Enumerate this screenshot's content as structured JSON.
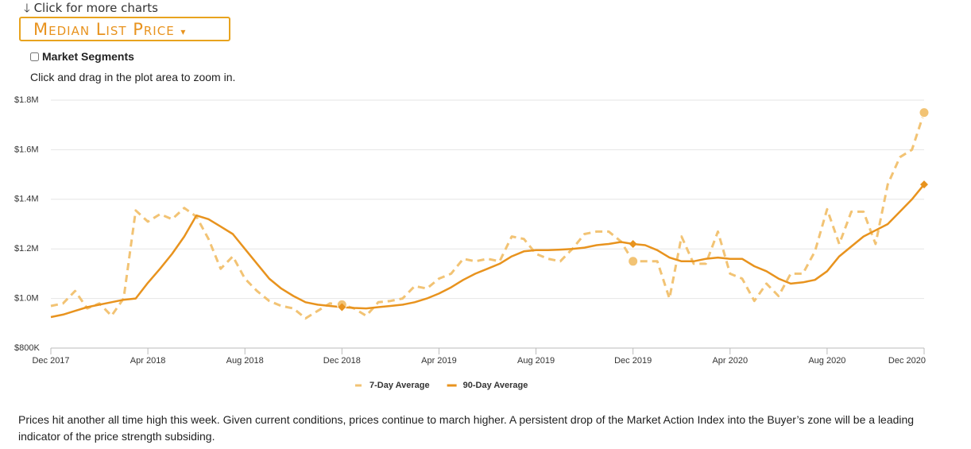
{
  "ui": {
    "more_link": "Click for more charts",
    "dropdown": "Median List Price",
    "checkbox": "Market Segments",
    "hint": "Click and drag in the plot area to zoom in.",
    "note": "Prices hit another all time high this week. Given current conditions, prices continue to march higher. A persistent drop of the Market Action Index into the Buyer’s zone will be a leading indicator of the price strength subsiding."
  },
  "chart_data": {
    "type": "line",
    "categories": [
      "Dec 2017",
      null,
      null,
      null,
      null,
      null,
      null,
      null,
      "Apr 2018",
      null,
      null,
      null,
      null,
      null,
      null,
      null,
      "Aug 2018",
      null,
      null,
      null,
      null,
      null,
      null,
      null,
      "Dec 2018",
      null,
      null,
      null,
      null,
      null,
      null,
      null,
      "Apr 2019",
      null,
      null,
      null,
      null,
      null,
      null,
      null,
      "Aug 2019",
      null,
      null,
      null,
      null,
      null,
      null,
      null,
      "Dec 2019",
      null,
      null,
      null,
      null,
      null,
      null,
      null,
      "Apr 2020",
      null,
      null,
      null,
      null,
      null,
      null,
      null,
      "Aug 2020",
      null,
      null,
      null,
      null,
      null,
      null,
      null,
      "Dec 2020"
    ],
    "series": [
      {
        "name": "7-Day Average",
        "color": "#f2c374",
        "dashed": true,
        "values": [
          970000,
          980000,
          1030000,
          960000,
          980000,
          930000,
          1000000,
          1355000,
          1310000,
          1340000,
          1320000,
          1365000,
          1330000,
          1240000,
          1120000,
          1170000,
          1080000,
          1030000,
          990000,
          970000,
          960000,
          920000,
          950000,
          980000,
          975000,
          960000,
          930000,
          985000,
          990000,
          1000000,
          1050000,
          1040000,
          1080000,
          1100000,
          1160000,
          1150000,
          1160000,
          1150000,
          1250000,
          1240000,
          1180000,
          1160000,
          1150000,
          1200000,
          1260000,
          1270000,
          1270000,
          1230000,
          1150000,
          1150000,
          1150000,
          1000000,
          1250000,
          1140000,
          1140000,
          1270000,
          1100000,
          1080000,
          990000,
          1060000,
          1010000,
          1100000,
          1100000,
          1190000,
          1360000,
          1220000,
          1350000,
          1350000,
          1220000,
          1460000,
          1570000,
          1600000,
          1750000
        ]
      },
      {
        "name": "90-Day Average",
        "color": "#e8931e",
        "dashed": false,
        "values": [
          925000,
          935000,
          950000,
          965000,
          975000,
          985000,
          995000,
          1000000,
          1063000,
          1120000,
          1180000,
          1250000,
          1335000,
          1320000,
          1290000,
          1260000,
          1200000,
          1140000,
          1080000,
          1040000,
          1010000,
          985000,
          975000,
          970000,
          965000,
          962000,
          960000,
          965000,
          970000,
          975000,
          985000,
          1000000,
          1020000,
          1045000,
          1075000,
          1100000,
          1120000,
          1140000,
          1170000,
          1190000,
          1195000,
          1195000,
          1197000,
          1200000,
          1205000,
          1215000,
          1220000,
          1228000,
          1220000,
          1215000,
          1195000,
          1165000,
          1150000,
          1150000,
          1160000,
          1165000,
          1160000,
          1160000,
          1130000,
          1110000,
          1080000,
          1060000,
          1065000,
          1075000,
          1110000,
          1170000,
          1210000,
          1250000,
          1275000,
          1300000,
          1350000,
          1400000,
          1460000
        ]
      }
    ],
    "ylim": [
      800000,
      1800000
    ],
    "yticks": [
      {
        "value": 800000,
        "label": "$800K"
      },
      {
        "value": 1000000,
        "label": "$1.0M"
      },
      {
        "value": 1200000,
        "label": "$1.2M"
      },
      {
        "value": 1400000,
        "label": "$1.4M"
      },
      {
        "value": 1600000,
        "label": "$1.6M"
      },
      {
        "value": 1800000,
        "label": "$1.8M"
      }
    ],
    "grid": true,
    "legend": "bottom"
  }
}
